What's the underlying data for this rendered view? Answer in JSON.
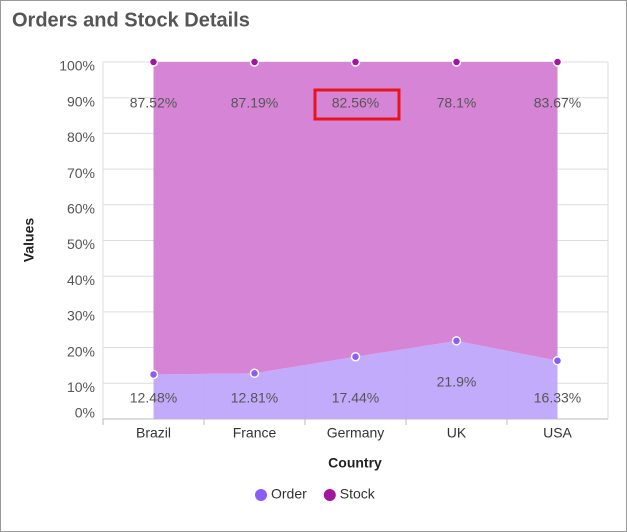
{
  "chart_data": {
    "type": "stacked-area-100",
    "title": "Orders and Stock Details",
    "x_label": "Country",
    "y_label": "Values",
    "categories": [
      "Brazil",
      "France",
      "Germany",
      "UK",
      "USA"
    ],
    "series": [
      {
        "name": "Order",
        "color": "#8b5cf6",
        "area_color": "#bfa6fb",
        "values": [
          12.48,
          12.81,
          17.44,
          21.9,
          16.33
        ],
        "value_labels": [
          "12.48%",
          "12.81%",
          "17.44%",
          "21.9%",
          "16.33%"
        ]
      },
      {
        "name": "Stock",
        "color": "#a3149f",
        "area_color": "#d47dd3",
        "values": [
          87.52,
          87.19,
          82.56,
          78.1,
          83.67
        ],
        "value_labels": [
          "87.52%",
          "87.19%",
          "82.56%",
          "78.1%",
          "83.67%"
        ]
      }
    ],
    "ylim": [
      0,
      100
    ],
    "yticks": [
      {
        "value": 0,
        "label": "0%"
      },
      {
        "value": 10,
        "label": "10%"
      },
      {
        "value": 20,
        "label": "20%"
      },
      {
        "value": 30,
        "label": "30%"
      },
      {
        "value": 40,
        "label": "40%"
      },
      {
        "value": 50,
        "label": "50%"
      },
      {
        "value": 60,
        "label": "60%"
      },
      {
        "value": 70,
        "label": "70%"
      },
      {
        "value": 80,
        "label": "80%"
      },
      {
        "value": 90,
        "label": "90%"
      },
      {
        "value": 100,
        "label": "100%"
      }
    ],
    "grid": true,
    "legend": "bottom"
  }
}
